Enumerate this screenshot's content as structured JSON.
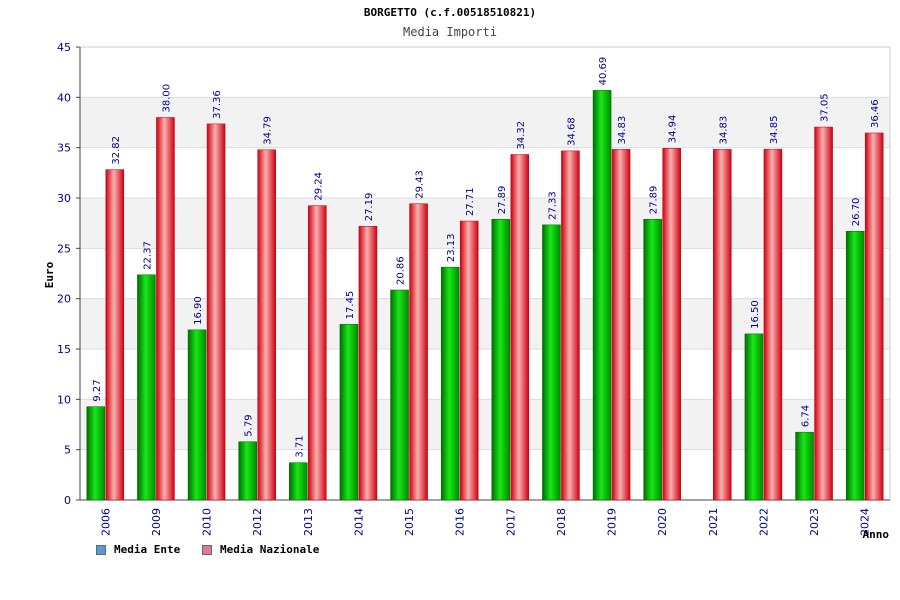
{
  "chart_data": {
    "type": "bar",
    "title": "BORGETTO (c.f.00518510821)",
    "subtitle": "Media Importi",
    "ylabel": "Euro",
    "xlabel": "Anno",
    "ylim": [
      0,
      45
    ],
    "yticks": [
      0,
      5,
      10,
      15,
      20,
      25,
      30,
      35,
      40,
      45
    ],
    "grid": true,
    "legend_position": "bottom-left",
    "categories": [
      "2006",
      "2009",
      "2010",
      "2012",
      "2013",
      "2014",
      "2015",
      "2016",
      "2017",
      "2018",
      "2019",
      "2020",
      "2021",
      "2022",
      "2023",
      "2024"
    ],
    "series": [
      {
        "name": "Media Ente",
        "color": "#00a800",
        "legend_color": "#5b9bd5",
        "values": [
          9.27,
          22.37,
          16.9,
          5.79,
          3.71,
          17.45,
          20.86,
          23.13,
          27.89,
          27.33,
          40.69,
          27.89,
          null,
          16.5,
          6.74,
          26.7
        ],
        "labels": [
          "9.27",
          "22.37",
          "16.90",
          "5.79",
          "3.71",
          "17.45",
          "20.86",
          "23.13",
          "27.89",
          "27.33",
          "40.69",
          "27.89",
          "",
          "16.50",
          "6.74",
          "26.70"
        ]
      },
      {
        "name": "Media Nazionale",
        "color": "#e8101c",
        "legend_color": "#e07aa0",
        "values": [
          32.82,
          38.0,
          37.36,
          34.79,
          29.24,
          27.19,
          29.43,
          27.71,
          34.32,
          34.68,
          34.83,
          34.94,
          34.83,
          34.85,
          37.05,
          36.46
        ],
        "labels": [
          "32.82",
          "38.00",
          "37.36",
          "34.79",
          "29.24",
          "27.19",
          "29.43",
          "27.71",
          "34.32",
          "34.68",
          "34.83",
          "34.94",
          "34.83",
          "34.85",
          "37.05",
          "36.46"
        ]
      }
    ]
  }
}
